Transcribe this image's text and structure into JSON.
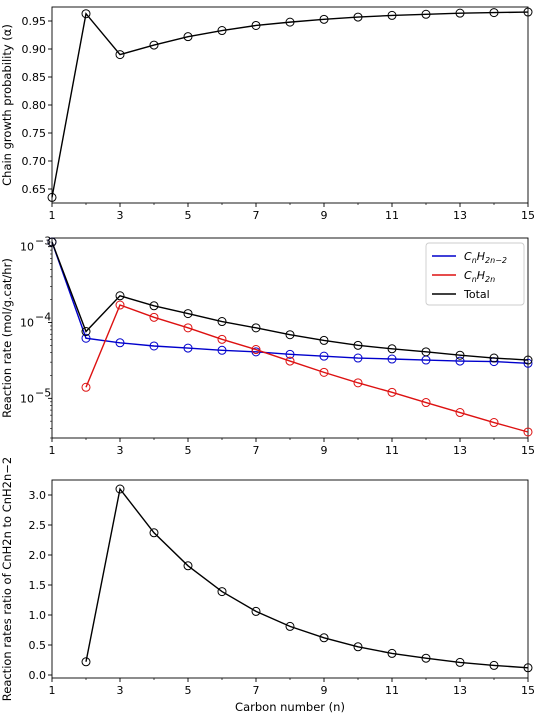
{
  "chart_data": [
    {
      "type": "line",
      "xlabel": "",
      "ylabel": "Chain growth probability (α)",
      "xlim": [
        1,
        15
      ],
      "ylim": [
        0.625,
        0.975
      ],
      "xticks": [
        "1",
        "3",
        "5",
        "7",
        "9",
        "11",
        "13",
        "15"
      ],
      "yticks": [
        "0.65",
        "0.70",
        "0.75",
        "0.80",
        "0.85",
        "0.90",
        "0.95"
      ],
      "grid": false,
      "series": [
        {
          "color": "#000000",
          "x": [
            1,
            2,
            3,
            4,
            5,
            6,
            7,
            8,
            9,
            10,
            11,
            12,
            13,
            14,
            15
          ],
          "values": [
            0.635,
            0.963,
            0.89,
            0.907,
            0.922,
            0.933,
            0.942,
            0.948,
            0.953,
            0.957,
            0.96,
            0.962,
            0.964,
            0.965,
            0.966
          ]
        }
      ]
    },
    {
      "type": "line",
      "xlabel": "",
      "ylabel": "Reaction rate (mol/g.cat/hr)",
      "yscale": "log",
      "xlim": [
        1,
        15
      ],
      "ylim": [
        3e-06,
        0.0013
      ],
      "xticks": [
        "1",
        "3",
        "5",
        "7",
        "9",
        "11",
        "13",
        "15"
      ],
      "yticks": [
        {
          "base": "10",
          "exp": "−3",
          "value": 0.001
        },
        {
          "base": "10",
          "exp": "−4",
          "value": 0.0001
        },
        {
          "base": "10",
          "exp": "−5",
          "value": 1e-05
        }
      ],
      "grid": false,
      "legend_position": "top-right",
      "series": [
        {
          "name": "CnH2n−2",
          "legend_main": "C",
          "legend_sub1": "n",
          "legend_mid": "H",
          "legend_sub2": "2n−2",
          "color": "#0000cc",
          "x": [
            1,
            2,
            3,
            4,
            5,
            6,
            7,
            8,
            9,
            10,
            11,
            12,
            13,
            14,
            15
          ],
          "values": [
            0.00115,
            6.2e-05,
            5.4e-05,
            4.9e-05,
            4.6e-05,
            4.3e-05,
            4.1e-05,
            3.8e-05,
            3.6e-05,
            3.4e-05,
            3.3e-05,
            3.2e-05,
            3.1e-05,
            3.05e-05,
            2.9e-05
          ]
        },
        {
          "name": "CnH2n",
          "legend_main": "C",
          "legend_sub1": "n",
          "legend_mid": "H",
          "legend_sub2": "2n",
          "color": "#dd1111",
          "x": [
            2,
            3,
            4,
            5,
            6,
            7,
            8,
            9,
            10,
            11,
            12,
            13,
            14,
            15
          ],
          "values": [
            1.4e-05,
            0.00017,
            0.000117,
            8.5e-05,
            6e-05,
            4.4e-05,
            3.1e-05,
            2.2e-05,
            1.6e-05,
            1.2e-05,
            8.8e-06,
            6.5e-06,
            4.8e-06,
            3.6e-06
          ]
        },
        {
          "name": "Total",
          "legend_main": "Total",
          "color": "#000000",
          "x": [
            1,
            2,
            3,
            4,
            5,
            6,
            7,
            8,
            9,
            10,
            11,
            12,
            13,
            14,
            15
          ],
          "values": [
            0.00115,
            7.6e-05,
            0.000225,
            0.000166,
            0.000131,
            0.000103,
            8.5e-05,
            6.9e-05,
            5.8e-05,
            5e-05,
            4.5e-05,
            4.1e-05,
            3.7e-05,
            3.4e-05,
            3.2e-05
          ]
        }
      ]
    },
    {
      "type": "line",
      "xlabel": "Carbon number (n)",
      "ylabel": "Reaction rates ratio of CnH2n to CnH2n−2",
      "xlim": [
        1,
        15
      ],
      "ylim": [
        -0.05,
        3.25
      ],
      "xticks": [
        "1",
        "3",
        "5",
        "7",
        "9",
        "11",
        "13",
        "15"
      ],
      "yticks": [
        "0.0",
        "0.5",
        "1.0",
        "1.5",
        "2.0",
        "2.5",
        "3.0"
      ],
      "grid": false,
      "series": [
        {
          "color": "#000000",
          "x": [
            2,
            3,
            4,
            5,
            6,
            7,
            8,
            9,
            10,
            11,
            12,
            13,
            14,
            15
          ],
          "values": [
            0.22,
            3.1,
            2.37,
            1.82,
            1.39,
            1.06,
            0.81,
            0.62,
            0.47,
            0.36,
            0.28,
            0.21,
            0.16,
            0.12
          ]
        }
      ]
    }
  ]
}
